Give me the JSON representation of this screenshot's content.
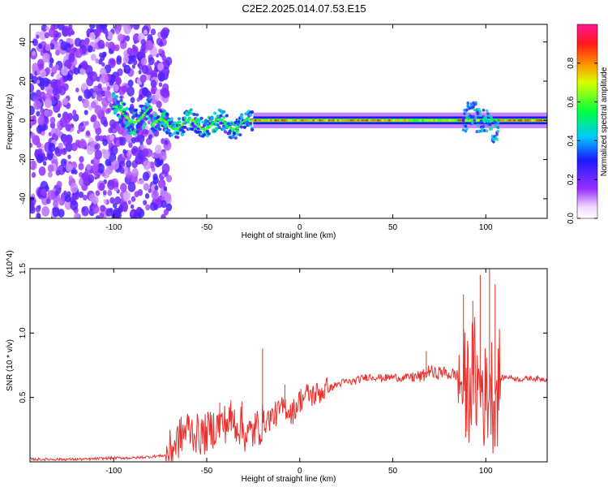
{
  "title": "C2E2.2025.014.07.53.E15",
  "chart_data": [
    {
      "type": "heatmap",
      "xlabel": "Height of straight line (km)",
      "ylabel": "Frequency (Hz)",
      "xlim": [
        -145,
        133
      ],
      "ylim": [
        -50,
        49
      ],
      "x_ticks": [
        -100,
        -50,
        0,
        50,
        100
      ],
      "x_tick_labels": [
        "-100",
        "-50",
        "0",
        "50",
        "100"
      ],
      "y_ticks": [
        -40,
        -20,
        0,
        20,
        40
      ],
      "y_tick_labels": [
        "-40",
        "-20",
        "0",
        "20",
        "40"
      ],
      "colorbar": {
        "label": "Normalized spectral amplitude",
        "range": [
          0,
          1
        ],
        "ticks": [
          0.0,
          0.2,
          0.4,
          0.6,
          0.8
        ],
        "tick_labels": [
          "0.0",
          "0.2",
          "0.4",
          "0.6",
          "0.8"
        ],
        "colormap": "rainbow (white-violet-blue-cyan-green-yellow-red-magenta)"
      },
      "regions": [
        {
          "x_range": [
            -145,
            -72
          ],
          "freq_range": [
            -50,
            49
          ],
          "amplitude": "low scattered noise (violet)"
        },
        {
          "x_range": [
            -100,
            -25
          ],
          "freq_range": [
            -15,
            8
          ],
          "amplitude": "wandering band, low-mid (blue/cyan/green)"
        },
        {
          "x_range": [
            -25,
            133
          ],
          "freq_range": [
            -2,
            2
          ],
          "amplitude": "narrow band near 0 Hz, high (green/yellow/red)"
        },
        {
          "x_range": [
            88,
            106
          ],
          "freq_range": [
            -10,
            10
          ],
          "amplitude": "disturbed band (blue/cyan)"
        }
      ]
    },
    {
      "type": "line",
      "xlabel": "Height of straight line (km)",
      "ylabel": "SNR (10 * v/v)",
      "y_multiplier": "(x10^4)",
      "xlim": [
        -145,
        133
      ],
      "ylim": [
        0,
        1.5
      ],
      "x_ticks": [
        -100,
        -50,
        0,
        50,
        100
      ],
      "x_tick_labels": [
        "-100",
        "-50",
        "0",
        "50",
        "100"
      ],
      "y_ticks": [
        0.5,
        1.0,
        1.5
      ],
      "y_tick_labels": [
        "0.5",
        "1.0",
        "1.5"
      ],
      "line_color": "#e8302c",
      "series": [
        {
          "x": [
            -145,
            -130,
            -115,
            -100,
            -90,
            -80,
            -72,
            -68,
            -64,
            -60,
            -56,
            -52,
            -48,
            -44,
            -40,
            -36,
            -32,
            -28,
            -24,
            -20,
            -16,
            -12,
            -8,
            -4,
            0,
            4,
            8,
            12,
            16,
            20,
            24,
            28,
            32,
            36,
            40,
            45,
            50,
            55,
            60,
            65,
            68,
            70,
            72,
            76,
            80,
            84,
            88,
            90,
            92,
            94,
            96,
            98,
            100,
            102,
            104,
            106,
            108,
            112,
            118,
            124,
            133
          ],
          "y": [
            0.02,
            0.02,
            0.02,
            0.03,
            0.03,
            0.04,
            0.05,
            0.12,
            0.2,
            0.26,
            0.22,
            0.2,
            0.25,
            0.28,
            0.3,
            0.32,
            0.28,
            0.2,
            0.25,
            0.3,
            0.34,
            0.38,
            0.43,
            0.38,
            0.48,
            0.52,
            0.52,
            0.55,
            0.57,
            0.6,
            0.62,
            0.62,
            0.64,
            0.66,
            0.66,
            0.65,
            0.66,
            0.65,
            0.66,
            0.66,
            0.68,
            0.72,
            0.68,
            0.7,
            0.68,
            0.68,
            0.6,
            0.55,
            0.65,
            0.7,
            0.55,
            0.6,
            0.45,
            0.65,
            0.5,
            0.55,
            0.65,
            0.66,
            0.64,
            0.65,
            0.64
          ]
        }
      ],
      "spikes": [
        {
          "x": -60,
          "y": 0.36
        },
        {
          "x": -53,
          "y": 0.3
        },
        {
          "x": -43,
          "y": 0.46
        },
        {
          "x": -37,
          "y": 0.48
        },
        {
          "x": -31,
          "y": 0.47
        },
        {
          "x": -20,
          "y": 0.88
        },
        {
          "x": -8,
          "y": 0.6
        },
        {
          "x": 68,
          "y": 0.86
        },
        {
          "x": 88,
          "y": 1.3
        },
        {
          "x": 93,
          "y": 1.25
        },
        {
          "x": 97,
          "y": 1.45
        },
        {
          "x": 102,
          "y": 1.52
        },
        {
          "x": 105,
          "y": 1.38
        }
      ]
    }
  ]
}
